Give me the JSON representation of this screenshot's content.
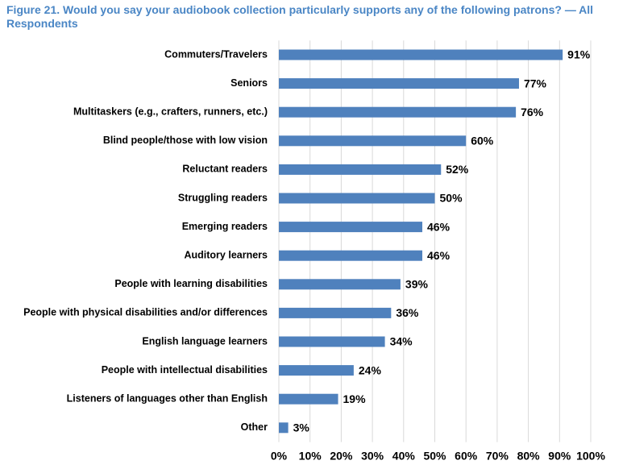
{
  "chart_data": {
    "type": "bar",
    "orientation": "horizontal",
    "title": "Figure 21. Would you say your audiobook collection particularly supports any of the following patrons? — All Respondents",
    "categories": [
      "Commuters/Travelers",
      "Seniors",
      "Multitaskers (e.g., crafters, runners, etc.)",
      "Blind people/those with low vision",
      "Reluctant readers",
      "Struggling readers",
      "Emerging readers",
      "Auditory learners",
      "People with learning disabilities",
      "People with physical disabilities and/or differences",
      "English language learners",
      "People with intellectual disabilities",
      "Listeners of languages other than English",
      "Other"
    ],
    "values": [
      91,
      77,
      76,
      60,
      52,
      50,
      46,
      46,
      39,
      36,
      34,
      24,
      19,
      3
    ],
    "value_labels": [
      "91%",
      "77%",
      "76%",
      "60%",
      "52%",
      "50%",
      "46%",
      "46%",
      "39%",
      "36%",
      "34%",
      "24%",
      "19%",
      "3%"
    ],
    "color": "#4f81bd",
    "xlim": [
      0,
      100
    ],
    "xticks": [
      {
        "value": 0,
        "label": "0%"
      },
      {
        "value": 10,
        "label": "10%"
      },
      {
        "value": 20,
        "label": "20%"
      },
      {
        "value": 30,
        "label": "30%"
      },
      {
        "value": 40,
        "label": "40%"
      },
      {
        "value": 50,
        "label": "50%"
      },
      {
        "value": 60,
        "label": "60%"
      },
      {
        "value": 70,
        "label": "70%"
      },
      {
        "value": 80,
        "label": "80%"
      },
      {
        "value": 90,
        "label": "90%"
      },
      {
        "value": 100,
        "label": "100%"
      }
    ],
    "grid": true
  }
}
